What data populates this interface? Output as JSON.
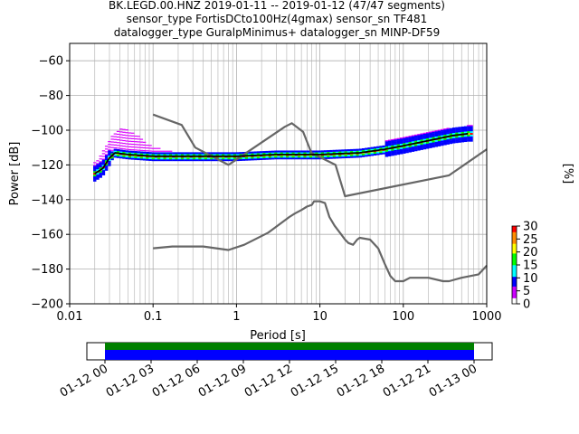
{
  "chart_data": [
    {
      "type": "line",
      "title_lines": [
        "BK.LEGD.00.HNZ   2019-01-11 -- 2019-01-12  (47/47 segments)",
        "sensor_type FortisDCto100Hz(4gmax) sensor_sn TF481",
        "datalogger_type GuralpMinimus+ datalogger_sn MINP-DF59"
      ],
      "xlabel": "Period [s]",
      "ylabel": "Power [dB]",
      "xscale": "log",
      "xlim": [
        0.01,
        1000
      ],
      "ylim": [
        -200,
        -50
      ],
      "x_ticks": [
        "0.01",
        "0.1",
        "1",
        "10",
        "100",
        "1000"
      ],
      "y_ticks": [
        "−60",
        "−80",
        "−100",
        "−120",
        "−140",
        "−160",
        "−180",
        "−200"
      ],
      "grid": true,
      "colorbar": {
        "label": "[%]",
        "range": [
          0,
          30
        ],
        "ticks": [
          "0",
          "5",
          "10",
          "15",
          "20",
          "25",
          "30"
        ],
        "colormap": "pqlx"
      },
      "series": [
        {
          "name": "NHNM",
          "color": "#666666",
          "points": [
            [
              0.1,
              -91
            ],
            [
              0.22,
              -97
            ],
            [
              0.32,
              -110
            ],
            [
              0.8,
              -120
            ],
            [
              3.8,
              -98
            ],
            [
              4.6,
              -96
            ],
            [
              6.3,
              -101
            ],
            [
              7.9,
              -113
            ],
            [
              15.4,
              -120
            ],
            [
              20,
              -138
            ],
            [
              354,
              -126
            ],
            [
              1000,
              -111
            ]
          ]
        },
        {
          "name": "NLNM",
          "color": "#666666",
          "points": [
            [
              0.1,
              -168
            ],
            [
              0.17,
              -167
            ],
            [
              0.4,
              -167
            ],
            [
              0.8,
              -169
            ],
            [
              1.24,
              -166
            ],
            [
              2.4,
              -159
            ],
            [
              4.3,
              -150
            ],
            [
              5,
              -148
            ],
            [
              6,
              -146
            ],
            [
              7,
              -144
            ],
            [
              8,
              -143
            ],
            [
              8.5,
              -141
            ],
            [
              10,
              -141
            ],
            [
              11.5,
              -142
            ],
            [
              13,
              -150
            ],
            [
              15,
              -155
            ],
            [
              18,
              -160
            ],
            [
              20,
              -163
            ],
            [
              22,
              -165
            ],
            [
              25,
              -166
            ],
            [
              28,
              -163
            ],
            [
              30,
              -162
            ],
            [
              40,
              -163
            ],
            [
              50,
              -168
            ],
            [
              60,
              -177
            ],
            [
              70,
              -184
            ],
            [
              80,
              -187
            ],
            [
              100,
              -187
            ],
            [
              120,
              -185
            ],
            [
              150,
              -185
            ],
            [
              200,
              -185
            ],
            [
              300,
              -187
            ],
            [
              354,
              -187
            ],
            [
              500,
              -185
            ],
            [
              800,
              -183
            ],
            [
              1000,
              -178
            ]
          ]
        },
        {
          "name": "mode",
          "color": "#000000",
          "points": [
            [
              0.02,
              -125
            ],
            [
              0.025,
              -122
            ],
            [
              0.03,
              -116
            ],
            [
              0.035,
              -113
            ],
            [
              0.05,
              -114
            ],
            [
              0.1,
              -115
            ],
            [
              0.3,
              -115
            ],
            [
              1,
              -115
            ],
            [
              3,
              -114
            ],
            [
              10,
              -114
            ],
            [
              30,
              -113
            ],
            [
              60,
              -111
            ],
            [
              100,
              -109
            ],
            [
              200,
              -106
            ],
            [
              400,
              -103
            ],
            [
              600,
              -102
            ]
          ]
        },
        {
          "name": "pdf-low-percent",
          "color": "#cc00ff",
          "points": [
            [
              0.02,
              -118
            ],
            [
              0.025,
              -112
            ],
            [
              0.03,
              -105
            ],
            [
              0.04,
              -98
            ],
            [
              0.06,
              -101
            ],
            [
              0.08,
              -106
            ],
            [
              0.1,
              -109
            ],
            [
              0.15,
              -111
            ],
            [
              0.2,
              -113
            ],
            [
              0.3,
              -114
            ]
          ]
        },
        {
          "name": "pdf-high-percent",
          "color": "#0000ff",
          "points": [
            [
              0.05,
              -112
            ],
            [
              0.1,
              -111
            ],
            [
              0.2,
              -112
            ],
            [
              0.3,
              -114
            ],
            [
              1,
              -115
            ],
            [
              3,
              -114
            ],
            [
              10,
              -113
            ],
            [
              30,
              -112
            ],
            [
              60,
              -110
            ],
            [
              100,
              -108
            ],
            [
              200,
              -105
            ],
            [
              300,
              -103
            ],
            [
              600,
              -101
            ]
          ]
        }
      ]
    },
    {
      "type": "bar",
      "name": "data-coverage",
      "x_ticks": [
        "01-12 00",
        "01-12 03",
        "01-12 06",
        "01-12 09",
        "01-12 12",
        "01-12 15",
        "01-12 18",
        "01-12 21",
        "01-13 00"
      ],
      "segments": [
        {
          "color": "#008000",
          "start_hour": 0,
          "end_hour": 24
        },
        {
          "color": "#0000ff",
          "start_hour": 0,
          "end_hour": 24
        }
      ]
    }
  ]
}
